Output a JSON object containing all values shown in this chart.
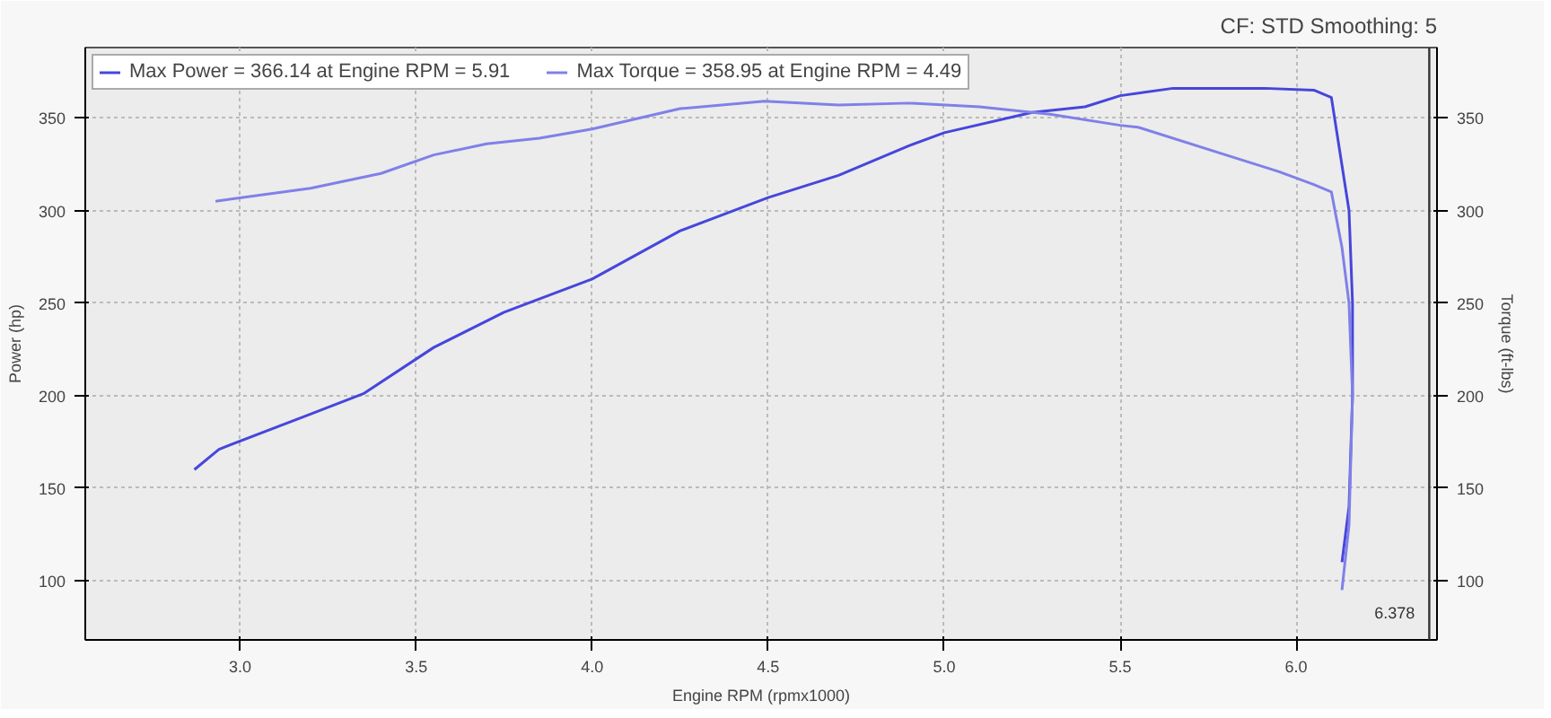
{
  "chart_data": {
    "type": "line",
    "xlabel": "Engine RPM (rpmx1000)",
    "ylabel": "Power (hp)",
    "y2label": "Torque (ft-lbs)",
    "annotations": [
      "CF: STD Smoothing: 5"
    ],
    "xlim": [
      2.56,
      6.4
    ],
    "xticks": [
      {
        "value": 3,
        "label": "3.0"
      },
      {
        "value": 3.5,
        "label": "3.5"
      },
      {
        "value": 4,
        "label": "4.0"
      },
      {
        "value": 4.5,
        "label": "4.5"
      },
      {
        "value": 5,
        "label": "5.0"
      },
      {
        "value": 5.5,
        "label": "5.5"
      },
      {
        "value": 6,
        "label": "6.0"
      }
    ],
    "ylim": [
      68,
      388
    ],
    "yticks": [
      100,
      150,
      200,
      250,
      300,
      350
    ],
    "y2lim": [
      68,
      388
    ],
    "y2ticks": [
      100,
      150,
      200,
      250,
      300,
      350
    ],
    "grid": true,
    "legend": "top left",
    "ref_lines": [
      {
        "axis": "x",
        "value": 6.378,
        "label": "6.378",
        "color": "#333333"
      }
    ],
    "series": [
      {
        "name": "Max Power = 366.14 at Engine RPM = 5.91",
        "color": "#4646dc",
        "x": [
          2.87,
          2.94,
          3.2,
          3.35,
          3.55,
          3.75,
          4.0,
          4.25,
          4.5,
          4.7,
          4.9,
          5.0,
          5.25,
          5.4,
          5.5,
          5.65,
          5.8,
          5.91,
          6.05,
          6.1,
          6.15,
          6.16,
          6.16,
          6.15,
          6.13
        ],
        "values": [
          160,
          171,
          190,
          201,
          226,
          245,
          263,
          289,
          307,
          319,
          335,
          342,
          353,
          356,
          362,
          366,
          366,
          366,
          365,
          361,
          300,
          250,
          200,
          140,
          110
        ]
      },
      {
        "name": "Max Torque = 358.95 at Engine RPM = 4.49",
        "color": "#8080e8",
        "x": [
          2.93,
          3.2,
          3.4,
          3.55,
          3.7,
          3.85,
          4.0,
          4.25,
          4.49,
          4.7,
          4.9,
          5.1,
          5.3,
          5.5,
          5.55,
          5.8,
          5.95,
          6.05,
          6.1,
          6.13,
          6.15,
          6.16,
          6.15,
          6.13
        ],
        "values": [
          305,
          312,
          320,
          330,
          336,
          339,
          344,
          355,
          359,
          357,
          358,
          356,
          352,
          346,
          345,
          330,
          321,
          314,
          310,
          280,
          250,
          200,
          130,
          95
        ]
      }
    ]
  }
}
